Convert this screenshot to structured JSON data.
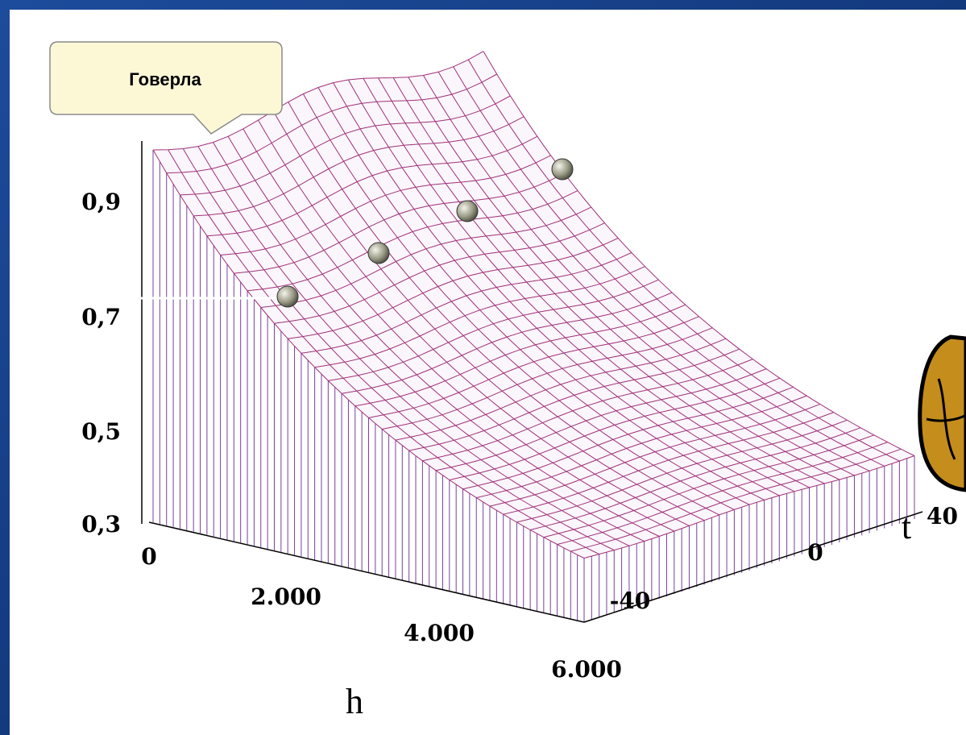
{
  "callout": "Говерла",
  "z_axis": {
    "ticks": [
      "0,9",
      "0,7",
      "0,5",
      "0,3"
    ]
  },
  "h_axis": {
    "label": "h",
    "ticks": [
      "0",
      "2.000",
      "4.000",
      "6.000"
    ]
  },
  "t_axis": {
    "label": "t",
    "ticks": [
      "-40",
      "0",
      "40"
    ]
  }
}
